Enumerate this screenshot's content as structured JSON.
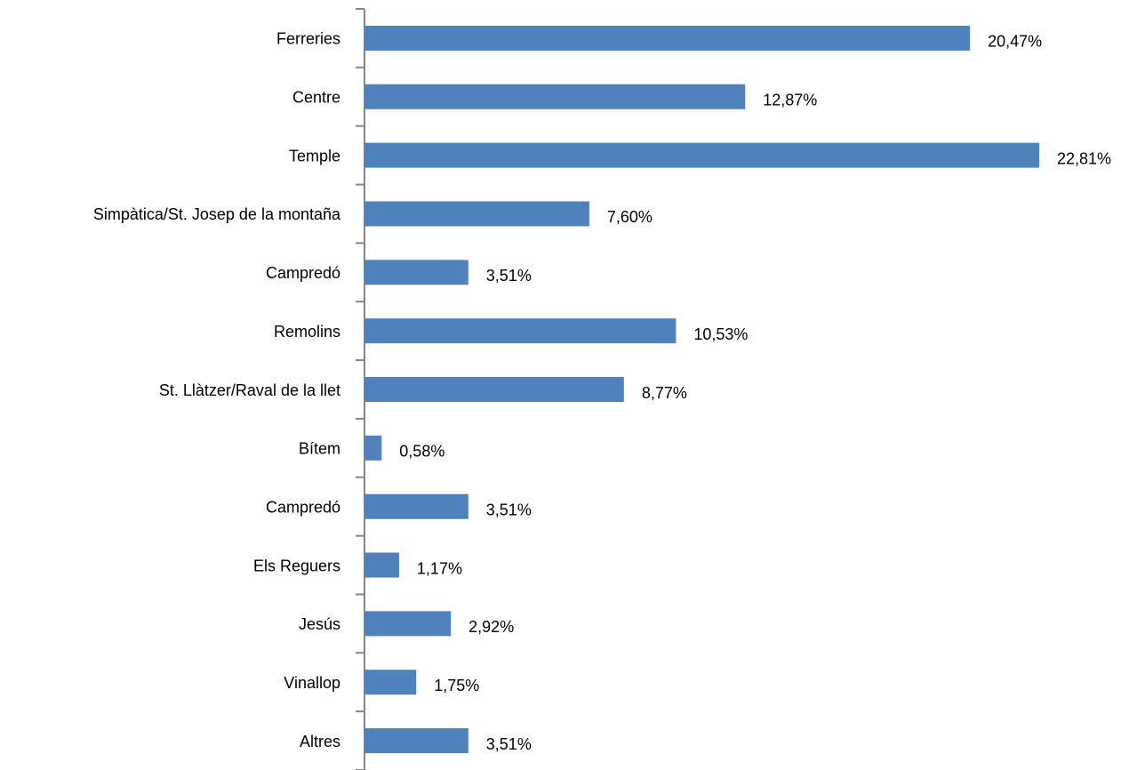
{
  "chart_data": {
    "type": "bar",
    "orientation": "horizontal",
    "categories": [
      "Ferreries",
      "Centre",
      "Temple",
      "Simpàtica/St. Josep de la montaña",
      "Campredó",
      "Remolins",
      "St. Llàtzer/Raval de la llet",
      "Bítem",
      "Campredó",
      "Els Reguers",
      "Jesús",
      "Vinallop",
      "Altres"
    ],
    "values": [
      20.47,
      12.87,
      22.81,
      7.6,
      3.51,
      10.53,
      8.77,
      0.58,
      3.51,
      1.17,
      2.92,
      1.75,
      3.51
    ],
    "value_labels": [
      "20,47%",
      "12,87%",
      "22,81%",
      "7,60%",
      "3,51%",
      "10,53%",
      "8,77%",
      "0,58%",
      "3,51%",
      "1,17%",
      "2,92%",
      "1,75%",
      "3,51%"
    ],
    "color": "#4f81bd"
  }
}
